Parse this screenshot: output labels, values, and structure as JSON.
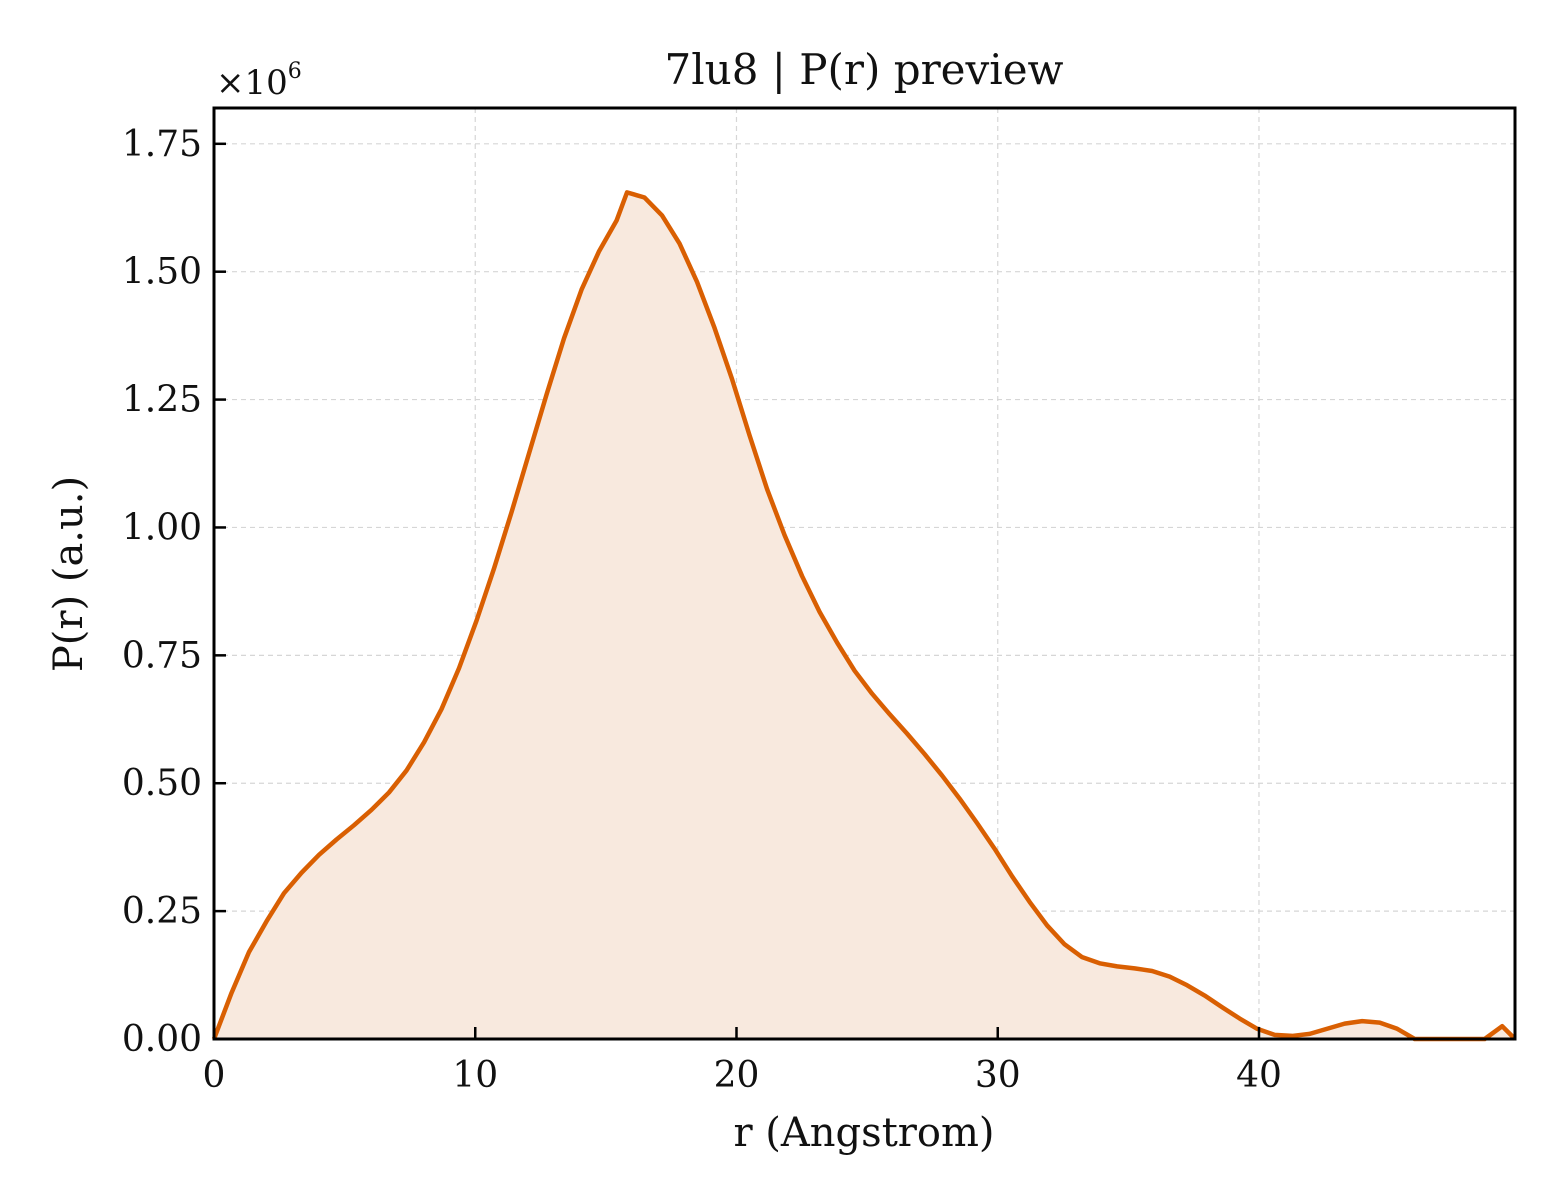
{
  "chart_data": {
    "type": "area",
    "title": "7lu8 | P(r) preview",
    "xlabel": "r (Angstrom)",
    "ylabel": "P(r) (a.u.)",
    "y_multiplier": "×10",
    "y_multiplier_exponent": "6",
    "xlim": [
      0,
      49.8
    ],
    "ylim": [
      0,
      1.82
    ],
    "y_scale": 1000000,
    "xticks": [
      0,
      10,
      20,
      30,
      40
    ],
    "xtick_labels": [
      "0",
      "10",
      "20",
      "30",
      "40"
    ],
    "yticks": [
      0,
      0.25,
      0.5,
      0.75,
      1.0,
      1.25,
      1.5,
      1.75
    ],
    "ytick_labels": [
      "0.00",
      "0.25",
      "0.50",
      "0.75",
      "1.00",
      "1.25",
      "1.50",
      "1.75"
    ],
    "grid": true,
    "line_color": "#d95f02",
    "fill_color": "#f8e9de",
    "x": [
      0,
      0.67,
      1.34,
      2.01,
      2.68,
      3.35,
      4.02,
      4.69,
      5.36,
      6.03,
      6.7,
      7.37,
      8.04,
      8.71,
      9.38,
      10.05,
      10.72,
      11.39,
      12.06,
      12.73,
      13.4,
      14.07,
      14.74,
      15.41,
      15.81,
      16.48,
      17.15,
      17.82,
      18.49,
      19.16,
      19.83,
      20.5,
      21.17,
      21.84,
      22.51,
      23.18,
      23.85,
      24.52,
      25.19,
      25.86,
      26.53,
      27.2,
      27.87,
      28.54,
      29.21,
      29.88,
      30.55,
      31.22,
      31.89,
      32.56,
      33.23,
      33.9,
      34.57,
      35.24,
      35.91,
      36.58,
      37.25,
      37.92,
      38.59,
      39.26,
      39.93,
      40.6,
      41.27,
      41.94,
      42.61,
      43.28,
      43.95,
      44.62,
      45.29,
      45.96,
      46.63,
      47.3,
      47.97,
      48.64,
      49.31,
      49.8
    ],
    "y": [
      0,
      0.09,
      0.17,
      0.23,
      0.285,
      0.325,
      0.36,
      0.39,
      0.418,
      0.448,
      0.482,
      0.525,
      0.58,
      0.645,
      0.725,
      0.818,
      0.92,
      1.03,
      1.145,
      1.26,
      1.37,
      1.465,
      1.54,
      1.6,
      1.655,
      1.645,
      1.61,
      1.555,
      1.48,
      1.39,
      1.29,
      1.18,
      1.075,
      0.985,
      0.905,
      0.835,
      0.775,
      0.72,
      0.675,
      0.635,
      0.597,
      0.557,
      0.515,
      0.47,
      0.422,
      0.372,
      0.318,
      0.268,
      0.222,
      0.185,
      0.16,
      0.148,
      0.142,
      0.138,
      0.133,
      0.122,
      0.105,
      0.085,
      0.062,
      0.04,
      0.02,
      0.008,
      0.006,
      0.01,
      0.02,
      0.03,
      0.035,
      0.032,
      0.02,
      0.0,
      0.0,
      0.0,
      0.0,
      0.0,
      0.025,
      0.0
    ]
  }
}
